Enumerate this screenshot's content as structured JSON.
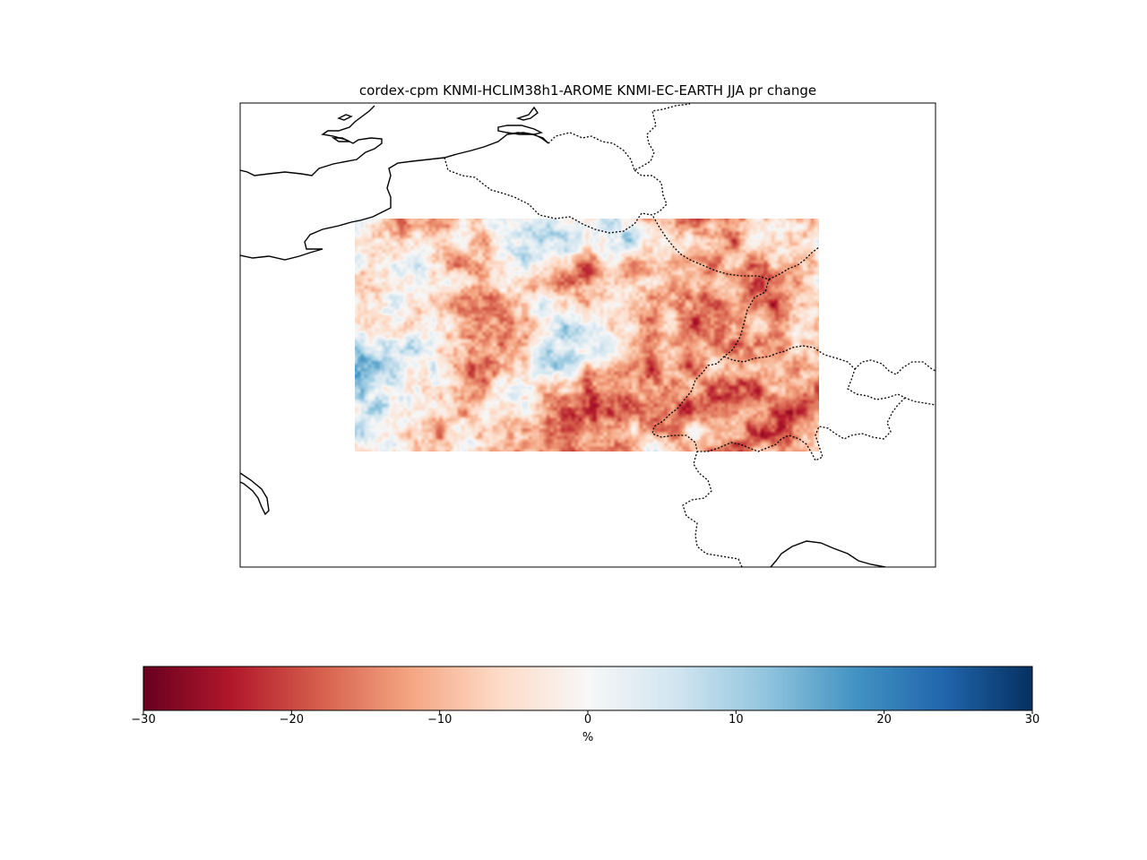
{
  "figure": {
    "title": "cordex-cpm KNMI-HCLIM38h1-AROME KNMI-EC-EARTH JJA pr change"
  },
  "map": {
    "variable": "pr",
    "season": "JJA",
    "features": [
      "coastline",
      "country-borders"
    ]
  },
  "colorbar": {
    "colormap": "RdBu",
    "orientation": "horizontal",
    "vmin": -30,
    "vmax": 30,
    "tick_labels": [
      "−30",
      "−20",
      "−10",
      "0",
      "10",
      "20",
      "30"
    ],
    "unit": "%",
    "colors": [
      "#67001f",
      "#b2182b",
      "#d6604d",
      "#f4a582",
      "#fddbc7",
      "#f7f7f7",
      "#d1e5f0",
      "#92c5de",
      "#4393c3",
      "#2166ac",
      "#053061"
    ]
  }
}
